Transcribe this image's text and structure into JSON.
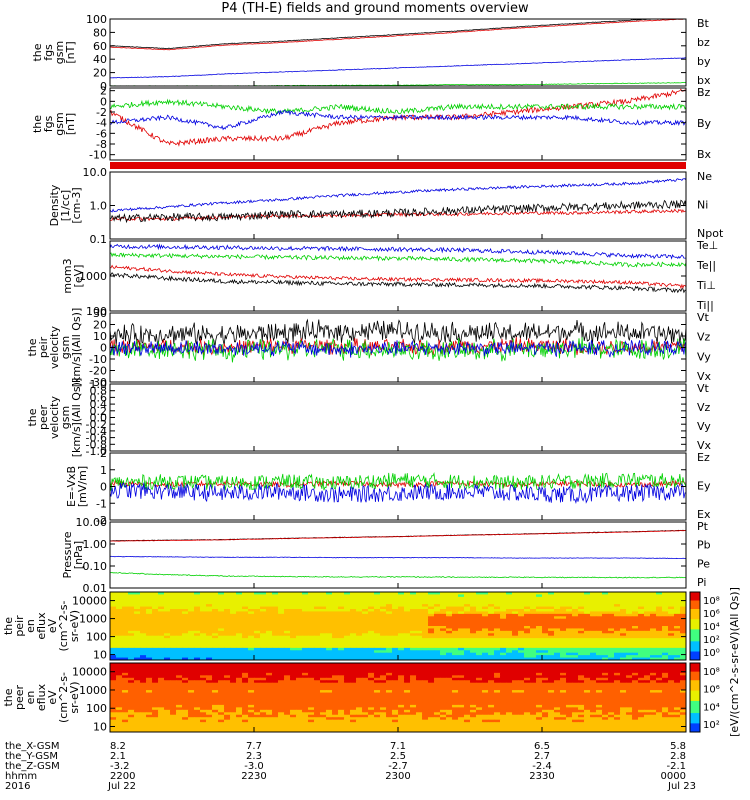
{
  "title": "P4 (TH-E) fields and ground moments overview",
  "colors": {
    "black": "#000000",
    "red": "#e00000",
    "green": "#00d000",
    "blue": "#0000e0"
  },
  "chart_data": [
    {
      "type": "line",
      "ylabel_lines": [
        "the",
        "fgs",
        "gsm",
        "[nT]"
      ],
      "ylim": [
        0,
        100
      ],
      "yticks": [
        0,
        20,
        40,
        60,
        80,
        100
      ],
      "series": [
        {
          "name": "Bt",
          "color": "black",
          "values": [
            60,
            56,
            63,
            67,
            72,
            77,
            82,
            88,
            93,
            98,
            103
          ]
        },
        {
          "name": "bz",
          "color": "red",
          "values": [
            58,
            54,
            61,
            65,
            70,
            75,
            80,
            86,
            91,
            96,
            100
          ]
        },
        {
          "name": "by",
          "color": "green",
          "values": [
            0,
            0,
            0,
            0.5,
            1,
            1,
            2,
            2,
            3,
            4,
            5
          ]
        },
        {
          "name": "bx",
          "color": "blue",
          "values": [
            12,
            14,
            18,
            21,
            24,
            27,
            30,
            33,
            36,
            39,
            42
          ]
        }
      ]
    },
    {
      "type": "line",
      "ylabel_lines": [
        "the",
        "fgs",
        "gsm",
        "[nT]"
      ],
      "ylim": [
        -11,
        2.5
      ],
      "yticks": [
        -10,
        -8,
        -6,
        -4,
        -2,
        0,
        2
      ],
      "series": [
        {
          "name": "Bz",
          "color": "red",
          "values": [
            -2,
            -8,
            -7,
            -7,
            -4,
            -3,
            -3,
            -2,
            -1,
            0,
            2
          ]
        },
        {
          "name": "By",
          "color": "green",
          "values": [
            -1,
            0,
            -1,
            -2,
            -1,
            -2,
            -1,
            -1,
            -1,
            -1,
            -1
          ]
        },
        {
          "name": "Bx",
          "color": "blue",
          "values": [
            -4,
            -3,
            -5,
            -2,
            -3,
            -3,
            -3,
            -3,
            -3,
            -4,
            -4
          ]
        }
      ]
    },
    {
      "type": "bar",
      "ylabel_lines": [],
      "series": []
    },
    {
      "type": "line",
      "log": true,
      "ylabel_lines": [
        "Density",
        "[1/cc]",
        "[cm-3]"
      ],
      "ylim": [
        0.1,
        10.0
      ],
      "yticks": [
        0.1,
        1.0,
        10.0
      ],
      "ytick_labels": [
        "0.1",
        "1.0",
        "10.0"
      ],
      "series": [
        {
          "name": "Ne",
          "color": "red",
          "values": [
            0.4,
            0.4,
            0.45,
            0.5,
            0.5,
            0.55,
            0.55,
            0.6,
            0.6,
            0.65,
            0.7
          ]
        },
        {
          "name": "Ni",
          "color": "black",
          "values": [
            0.4,
            0.45,
            0.45,
            0.55,
            0.55,
            0.6,
            0.7,
            0.8,
            0.9,
            1.0,
            1.1
          ]
        },
        {
          "name": "Npot",
          "color": "blue",
          "values": [
            0.7,
            0.9,
            1.2,
            1.5,
            2.0,
            2.5,
            3.0,
            3.5,
            4.0,
            4.5,
            6.0
          ]
        }
      ]
    },
    {
      "type": "line",
      "log": true,
      "ylabel_lines": [
        "mom3",
        "[eV]"
      ],
      "ylim": [
        100,
        10000
      ],
      "yticks": [
        100,
        1000,
        10000
      ],
      "ytick_labels": [
        "100",
        "1000",
        ""
      ],
      "series": [
        {
          "name": "Te⊥",
          "color": "red",
          "values": [
            1800,
            1400,
            1100,
            950,
            850,
            800,
            780,
            750,
            720,
            650,
            500
          ]
        },
        {
          "name": "Te||",
          "color": "black",
          "values": [
            1100,
            850,
            700,
            650,
            600,
            580,
            560,
            540,
            500,
            450,
            380
          ]
        },
        {
          "name": "Ti⊥",
          "color": "blue",
          "values": [
            7000,
            6800,
            6500,
            6200,
            6000,
            5800,
            5500,
            5000,
            4500,
            3800,
            3500
          ]
        },
        {
          "name": "Ti||",
          "color": "green",
          "values": [
            4000,
            3800,
            3600,
            3400,
            3300,
            3200,
            3000,
            2800,
            2500,
            2100,
            2200
          ]
        }
      ]
    },
    {
      "type": "line",
      "ylabel_lines": [
        "the",
        "peir",
        "velocity",
        "gsm",
        "[km/s](All Qs)]"
      ],
      "ylim": [
        -30,
        30
      ],
      "yticks": [
        -30,
        -20,
        -10,
        0,
        10,
        20,
        30
      ],
      "series": [
        {
          "name": "Vt",
          "color": "black",
          "values": [
            10,
            12,
            11,
            13,
            14,
            15,
            13,
            12,
            14,
            13,
            11
          ]
        },
        {
          "name": "Vz",
          "color": "red",
          "values": [
            0,
            1,
            0,
            2,
            1,
            0,
            1,
            2,
            1,
            0,
            1
          ]
        },
        {
          "name": "Vy",
          "color": "green",
          "values": [
            -2,
            -1,
            -3,
            -2,
            -1,
            -2,
            -3,
            -2,
            -1,
            -2,
            -1
          ]
        },
        {
          "name": "Vx",
          "color": "blue",
          "values": [
            -1,
            0,
            -1,
            0,
            -2,
            -1,
            0,
            -1,
            0,
            -1,
            0
          ]
        }
      ]
    },
    {
      "type": "line",
      "ylabel_lines": [
        "the",
        "peer",
        "velocity",
        "gsm",
        "[km/s](All Qs)]"
      ],
      "ylim": [
        -1,
        1
      ],
      "yticks": [
        -1.0,
        -0.8,
        -0.6,
        -0.4,
        -0.2,
        0.0,
        0.2,
        0.4,
        0.6,
        0.8,
        1.0
      ],
      "ytick_labels": [
        "-1.0",
        "-0.8",
        "-0.6",
        "-0.4",
        "-0.2",
        "0.0",
        "0.2",
        "0.4",
        "0.6",
        "0.8",
        "1.0"
      ],
      "series": [
        {
          "name": "Vt",
          "color": "black",
          "values": []
        },
        {
          "name": "Vz",
          "color": "red",
          "values": []
        },
        {
          "name": "Vy",
          "color": "green",
          "values": []
        },
        {
          "name": "Vx",
          "color": "blue",
          "values": []
        }
      ]
    },
    {
      "type": "line",
      "ylabel_lines": [
        "E=-VxB",
        "[mV/m]"
      ],
      "ylim": [
        -2,
        2
      ],
      "yticks": [
        -2,
        -1,
        0,
        1,
        2
      ],
      "series": [
        {
          "name": "Ez",
          "color": "red",
          "values": [
            0.2,
            0.1,
            0.2,
            0.1,
            0.2,
            0.1,
            0.2,
            0.1,
            0.2,
            0.1,
            0.2
          ]
        },
        {
          "name": "Ey",
          "color": "green",
          "values": [
            0.2,
            0.3,
            0.2,
            0.3,
            0.2,
            0.4,
            0.3,
            0.2,
            0.3,
            0.4,
            0.3
          ]
        },
        {
          "name": "Ex",
          "color": "blue",
          "values": [
            -0.2,
            -0.3,
            -0.4,
            -0.3,
            -0.5,
            -0.4,
            -0.3,
            -0.4,
            -0.5,
            -0.4,
            -0.3
          ]
        }
      ]
    },
    {
      "type": "line",
      "log": true,
      "ylabel_lines": [
        "Pressure",
        "[nPa]"
      ],
      "ylim": [
        0.01,
        10.0
      ],
      "yticks": [
        0.01,
        0.1,
        1.0,
        10.0
      ],
      "ytick_labels": [
        "0.01",
        "0.10",
        "1.00",
        "10.00"
      ],
      "series": [
        {
          "name": "Pt",
          "color": "black",
          "values": [
            1.4,
            1.5,
            1.6,
            1.8,
            2.0,
            2.2,
            2.5,
            2.8,
            3.2,
            3.6,
            4.2
          ]
        },
        {
          "name": "Pb",
          "color": "red",
          "values": [
            1.35,
            1.45,
            1.55,
            1.75,
            1.95,
            2.15,
            2.45,
            2.75,
            3.1,
            3.5,
            4.1
          ]
        },
        {
          "name": "Pe",
          "color": "green",
          "values": [
            0.05,
            0.04,
            0.035,
            0.033,
            0.032,
            0.032,
            0.031,
            0.031,
            0.03,
            0.03,
            0.03
          ]
        },
        {
          "name": "Pi",
          "color": "blue",
          "values": [
            0.27,
            0.26,
            0.25,
            0.25,
            0.24,
            0.24,
            0.24,
            0.23,
            0.23,
            0.23,
            0.22
          ]
        }
      ]
    },
    {
      "type": "heatmap",
      "log": true,
      "ylabel_lines": [
        "the",
        "peir",
        "en",
        "eflux",
        "eV",
        "(cm^2-s-",
        "sr-eV)"
      ],
      "ylim": [
        5,
        30000
      ],
      "yticks": [
        10,
        100,
        1000,
        10000
      ],
      "ytick_labels": [
        "10",
        "100",
        "1000",
        "10000"
      ]
    },
    {
      "type": "heatmap",
      "log": true,
      "ylabel_lines": [
        "the",
        "peer",
        "en",
        "eflux",
        "eV",
        "(cm^2-s-",
        "sr-eV)"
      ],
      "ylim": [
        5,
        30000
      ],
      "yticks": [
        10,
        100,
        1000,
        10000
      ],
      "ytick_labels": [
        "10",
        "100",
        "1000",
        "10000"
      ]
    }
  ],
  "colorbars": [
    {
      "ticks": [
        "10^8",
        "10^6",
        "10^4",
        "10^2",
        "10^0"
      ]
    },
    {
      "ticks": [
        "10^8",
        "10^6",
        "10^4",
        "10^2"
      ]
    }
  ],
  "colorbar_label": "[eV/(cm^2-s-sr-eV)(All Qs)]",
  "x_ephemeris": {
    "row_labels": [
      "the_X-GSM",
      "the_Y-GSM",
      "the_Z-GSM",
      "hhmm",
      "2016"
    ],
    "columns": [
      [
        "8.2",
        "2.1",
        "-3.2",
        "2200",
        "Jul 22"
      ],
      [
        "7.7",
        "2.3",
        "-3.0",
        "2230",
        ""
      ],
      [
        "7.1",
        "2.5",
        "-2.7",
        "2300",
        ""
      ],
      [
        "6.5",
        "2.7",
        "-2.4",
        "2330",
        ""
      ],
      [
        "5.8",
        "2.8",
        "-2.1",
        "0000",
        "Jul 23"
      ]
    ]
  }
}
